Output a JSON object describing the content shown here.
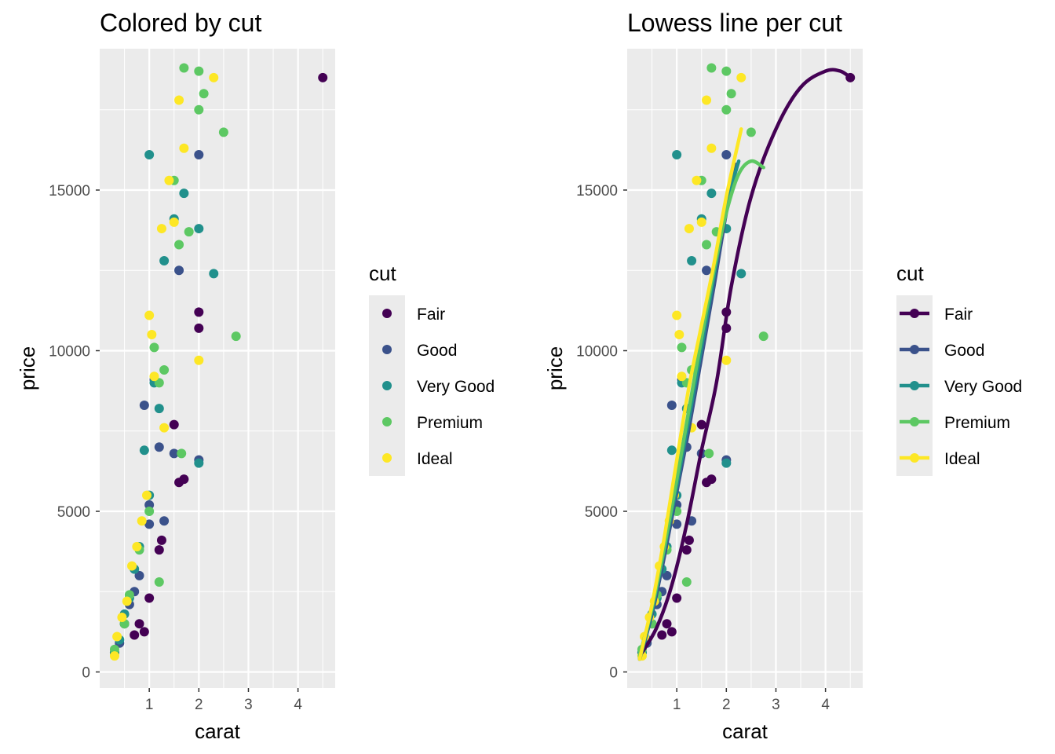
{
  "chart_data": [
    {
      "type": "scatter",
      "title": "Colored by cut",
      "xlabel": "carat",
      "ylabel": "price",
      "xlim": [
        0.0,
        4.75
      ],
      "ylim": [
        -500,
        19400
      ],
      "x_ticks": [
        1,
        2,
        3,
        4
      ],
      "x_tick_labels": [
        "1",
        "2",
        "3",
        "4"
      ],
      "y_ticks": [
        0,
        5000,
        10000,
        15000
      ],
      "y_tick_labels": [
        "0",
        "5000",
        "10000",
        "15000"
      ],
      "grid": true,
      "legend_title": "cut",
      "legend_position": "right",
      "legend_key": "point",
      "series": [
        {
          "name": "Fair",
          "color": "#440154",
          "x": [
            0.7,
            0.8,
            0.9,
            1.0,
            1.2,
            1.25,
            1.5,
            1.6,
            1.7,
            2.0,
            2.0,
            4.5
          ],
          "y": [
            1150,
            1500,
            1250,
            2300,
            3800,
            4100,
            7700,
            5900,
            6000,
            11200,
            10700,
            18500
          ]
        },
        {
          "name": "Good",
          "color": "#3B528B",
          "x": [
            0.3,
            0.4,
            0.5,
            0.6,
            0.7,
            0.8,
            0.9,
            1.0,
            1.0,
            1.1,
            1.2,
            1.3,
            1.5,
            1.6,
            2.0,
            2.0
          ],
          "y": [
            600,
            900,
            1500,
            2100,
            2500,
            3000,
            8300,
            5200,
            4600,
            9100,
            7000,
            4700,
            6800,
            12500,
            6600,
            16100
          ]
        },
        {
          "name": "Very Good",
          "color": "#21908C",
          "x": [
            0.3,
            0.4,
            0.5,
            0.6,
            0.7,
            0.8,
            0.9,
            1.0,
            1.1,
            1.2,
            1.3,
            1.5,
            1.7,
            2.0,
            2.0,
            2.3,
            1.0
          ],
          "y": [
            600,
            1000,
            1800,
            2300,
            3200,
            3900,
            6900,
            16100,
            9000,
            8200,
            12800,
            14100,
            14900,
            13800,
            6500,
            12400,
            5500
          ]
        },
        {
          "name": "Premium",
          "color": "#5DC863",
          "x": [
            0.3,
            0.5,
            0.6,
            0.8,
            1.0,
            1.1,
            1.2,
            1.3,
            1.5,
            1.6,
            1.7,
            1.8,
            2.0,
            2.0,
            2.1,
            2.5,
            2.75,
            1.65,
            1.2
          ],
          "y": [
            700,
            1500,
            2400,
            3800,
            5000,
            10100,
            2800,
            9400,
            15300,
            13300,
            18800,
            13700,
            17500,
            18700,
            18000,
            16800,
            10450,
            6800,
            9000
          ]
        },
        {
          "name": "Ideal",
          "color": "#FDE725",
          "x": [
            0.3,
            0.35,
            0.45,
            0.55,
            0.65,
            0.75,
            0.85,
            0.95,
            1.0,
            1.05,
            1.1,
            1.25,
            1.4,
            1.6,
            1.7,
            2.0,
            2.3,
            1.5,
            1.3
          ],
          "y": [
            500,
            1100,
            1700,
            2200,
            3300,
            3900,
            4700,
            5500,
            11100,
            10500,
            9200,
            13800,
            15300,
            17800,
            16300,
            9700,
            18500,
            14000,
            7600
          ]
        }
      ]
    },
    {
      "type": "scatter",
      "title": "Lowess line per cut",
      "xlabel": "carat",
      "ylabel": "price",
      "xlim": [
        0.0,
        4.75
      ],
      "ylim": [
        -500,
        19400
      ],
      "x_ticks": [
        1,
        2,
        3,
        4
      ],
      "x_tick_labels": [
        "1",
        "2",
        "3",
        "4"
      ],
      "y_ticks": [
        0,
        5000,
        10000,
        15000
      ],
      "y_tick_labels": [
        "0",
        "5000",
        "10000",
        "15000"
      ],
      "grid": true,
      "legend_title": "cut",
      "legend_position": "right",
      "legend_key": "point-and-line",
      "series": [
        {
          "name": "Fair",
          "color": "#440154",
          "x": [
            0.7,
            0.8,
            0.9,
            1.0,
            1.2,
            1.25,
            1.5,
            1.6,
            1.7,
            2.0,
            2.0,
            4.5
          ],
          "y": [
            1150,
            1500,
            1250,
            2300,
            3800,
            4100,
            7700,
            5900,
            6000,
            11200,
            10700,
            18500
          ],
          "line_x": [
            0.3,
            0.6,
            0.9,
            1.2,
            1.5,
            1.8,
            2.1,
            2.5,
            3.0,
            3.5,
            4.0,
            4.3,
            4.5
          ],
          "line_y": [
            600,
            1400,
            2700,
            4600,
            6900,
            9000,
            12000,
            14800,
            16900,
            18200,
            18700,
            18700,
            18500
          ]
        },
        {
          "name": "Good",
          "color": "#3B528B",
          "x": [
            0.3,
            0.4,
            0.5,
            0.6,
            0.7,
            0.8,
            0.9,
            1.0,
            1.0,
            1.1,
            1.2,
            1.3,
            1.5,
            1.6,
            2.0,
            2.0
          ],
          "y": [
            600,
            900,
            1500,
            2100,
            2500,
            3000,
            8300,
            5200,
            4600,
            9100,
            7000,
            4700,
            6800,
            12500,
            6600,
            16100
          ],
          "line_x": [
            0.25,
            0.5,
            0.75,
            1.0,
            1.25,
            1.5,
            1.75,
            2.0,
            2.2
          ],
          "line_y": [
            400,
            1800,
            3600,
            5600,
            7600,
            9800,
            12000,
            14300,
            15800
          ]
        },
        {
          "name": "Very Good",
          "color": "#21908C",
          "x": [
            0.3,
            0.4,
            0.5,
            0.6,
            0.7,
            0.8,
            0.9,
            1.0,
            1.1,
            1.2,
            1.3,
            1.5,
            1.7,
            2.0,
            2.0,
            2.3,
            1.0
          ],
          "y": [
            600,
            1000,
            1800,
            2300,
            3200,
            3900,
            6900,
            16100,
            9000,
            8200,
            12800,
            14100,
            14900,
            13800,
            6500,
            12400,
            5500
          ],
          "line_x": [
            0.25,
            0.5,
            0.75,
            1.0,
            1.25,
            1.5,
            1.75,
            2.0,
            2.25
          ],
          "line_y": [
            400,
            1900,
            3800,
            5800,
            7900,
            10100,
            12300,
            14500,
            15900
          ]
        },
        {
          "name": "Premium",
          "color": "#5DC863",
          "x": [
            0.3,
            0.5,
            0.6,
            0.8,
            1.0,
            1.1,
            1.2,
            1.3,
            1.5,
            1.6,
            1.7,
            1.8,
            2.0,
            2.0,
            2.1,
            2.5,
            2.75,
            1.65,
            1.2
          ],
          "y": [
            700,
            1500,
            2400,
            3800,
            5000,
            10100,
            2800,
            9400,
            15300,
            13300,
            18800,
            13700,
            17500,
            18700,
            18000,
            16800,
            10450,
            6800,
            9000
          ],
          "line_x": [
            0.25,
            0.5,
            0.75,
            1.0,
            1.25,
            1.5,
            1.75,
            2.0,
            2.25,
            2.5,
            2.75
          ],
          "line_y": [
            500,
            2000,
            3900,
            6000,
            8200,
            10400,
            12500,
            14300,
            15500,
            15900,
            15700
          ]
        },
        {
          "name": "Ideal",
          "color": "#FDE725",
          "x": [
            0.3,
            0.35,
            0.45,
            0.55,
            0.65,
            0.75,
            0.85,
            0.95,
            1.0,
            1.05,
            1.1,
            1.25,
            1.4,
            1.6,
            1.7,
            2.0,
            2.3,
            1.5,
            1.3
          ],
          "y": [
            500,
            1100,
            1700,
            2200,
            3300,
            3900,
            4700,
            5500,
            11100,
            10500,
            9200,
            13800,
            15300,
            17800,
            16300,
            9700,
            18500,
            14000,
            7600
          ],
          "line_x": [
            0.25,
            0.5,
            0.75,
            1.0,
            1.25,
            1.5,
            1.75,
            2.0,
            2.3
          ],
          "line_y": [
            400,
            2100,
            4200,
            6600,
            8900,
            10800,
            12700,
            14800,
            16900
          ]
        }
      ]
    }
  ]
}
